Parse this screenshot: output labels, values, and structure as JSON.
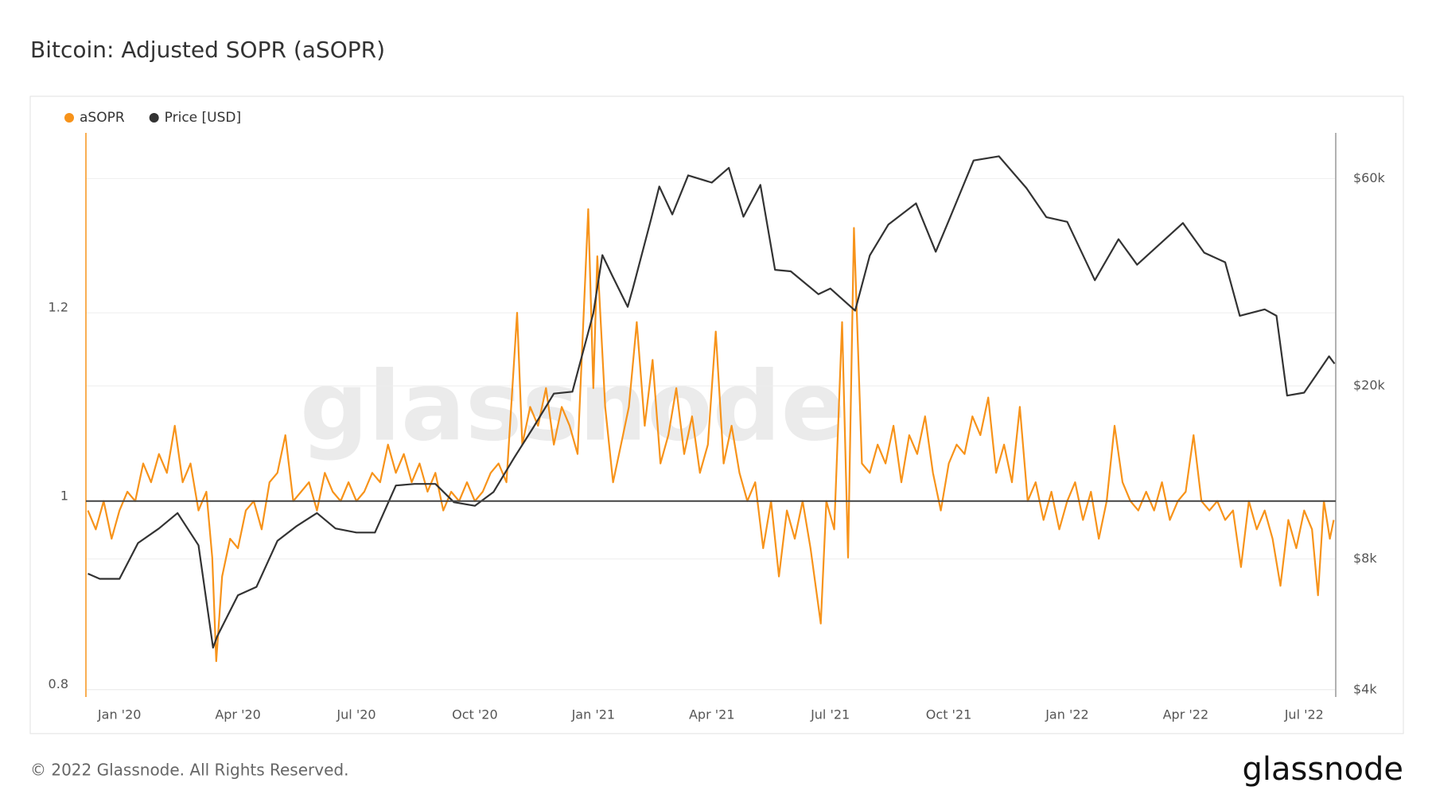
{
  "chart_data": {
    "type": "line",
    "title": "Bitcoin: Adjusted SOPR (aSOPR)",
    "footer": "© 2022 Glassnode. All Rights Reserved.",
    "brand": "glassnode",
    "xlim": [
      -0.85,
      30.8
    ],
    "xticks": [
      {
        "value": 0,
        "label": "Jan '20"
      },
      {
        "value": 3,
        "label": "Apr '20"
      },
      {
        "value": 6,
        "label": "Jul '20"
      },
      {
        "value": 9,
        "label": "Oct '20"
      },
      {
        "value": 12,
        "label": "Jan '21"
      },
      {
        "value": 15,
        "label": "Apr '21"
      },
      {
        "value": 18,
        "label": "Jul '21"
      },
      {
        "value": 21,
        "label": "Oct '21"
      },
      {
        "value": 24,
        "label": "Jan '22"
      },
      {
        "value": 27,
        "label": "Apr '22"
      },
      {
        "value": 30,
        "label": "Jul '22"
      }
    ],
    "ylim": [
      0.792,
      1.391
    ],
    "yticks": [
      0.8,
      1,
      1.2
    ],
    "y2lim": [
      3850,
      76400
    ],
    "y2ticks": [
      {
        "value": 4000,
        "label": "$4k"
      },
      {
        "value": 8000,
        "label": "$8k"
      },
      {
        "value": 20000,
        "label": "$20k"
      },
      {
        "value": 60000,
        "label": "$60k"
      }
    ],
    "y2log": true,
    "hline": 1,
    "grid": true,
    "legend": "top-left",
    "series": [
      {
        "name": "aSOPR",
        "color": "#f7931a",
        "axis": "y",
        "x": [
          -0.8,
          -0.6,
          -0.4,
          -0.2,
          0,
          0.2,
          0.4,
          0.6,
          0.8,
          1.0,
          1.2,
          1.4,
          1.6,
          1.8,
          2.0,
          2.2,
          2.35,
          2.45,
          2.6,
          2.8,
          3.0,
          3.2,
          3.4,
          3.6,
          3.8,
          4.0,
          4.2,
          4.4,
          4.6,
          4.8,
          5.0,
          5.2,
          5.4,
          5.6,
          5.8,
          6.0,
          6.2,
          6.4,
          6.6,
          6.8,
          7.0,
          7.2,
          7.4,
          7.6,
          7.8,
          8.0,
          8.2,
          8.4,
          8.6,
          8.8,
          9.0,
          9.2,
          9.4,
          9.6,
          9.8,
          10.07,
          10.2,
          10.4,
          10.6,
          10.8,
          11.0,
          11.2,
          11.4,
          11.6,
          11.87,
          12.0,
          12.1,
          12.3,
          12.5,
          12.7,
          12.9,
          13.1,
          13.3,
          13.5,
          13.7,
          13.9,
          14.1,
          14.3,
          14.5,
          14.7,
          14.9,
          15.1,
          15.3,
          15.5,
          15.7,
          15.9,
          16.1,
          16.3,
          16.5,
          16.7,
          16.9,
          17.1,
          17.3,
          17.5,
          17.76,
          17.9,
          18.1,
          18.3,
          18.45,
          18.6,
          18.8,
          19.0,
          19.2,
          19.4,
          19.6,
          19.8,
          20.0,
          20.2,
          20.4,
          20.6,
          20.8,
          21.0,
          21.2,
          21.4,
          21.6,
          21.8,
          22.0,
          22.2,
          22.4,
          22.6,
          22.8,
          23.0,
          23.2,
          23.4,
          23.6,
          23.8,
          24.0,
          24.2,
          24.4,
          24.6,
          24.8,
          25.0,
          25.2,
          25.4,
          25.6,
          25.8,
          26.0,
          26.2,
          26.4,
          26.6,
          26.8,
          27.0,
          27.2,
          27.4,
          27.6,
          27.8,
          28.0,
          28.2,
          28.4,
          28.6,
          28.8,
          29.0,
          29.2,
          29.4,
          29.6,
          29.8,
          30.0,
          30.2,
          30.35,
          30.5,
          30.65,
          30.75
        ],
        "values": [
          0.99,
          0.97,
          1.0,
          0.96,
          0.99,
          1.01,
          1.0,
          1.04,
          1.02,
          1.05,
          1.03,
          1.08,
          1.02,
          1.04,
          0.99,
          1.01,
          0.94,
          0.83,
          0.92,
          0.96,
          0.95,
          0.99,
          1.0,
          0.97,
          1.02,
          1.03,
          1.07,
          1.0,
          1.01,
          1.02,
          0.99,
          1.03,
          1.01,
          1.0,
          1.02,
          1.0,
          1.01,
          1.03,
          1.02,
          1.06,
          1.03,
          1.05,
          1.02,
          1.04,
          1.01,
          1.03,
          0.99,
          1.01,
          1.0,
          1.02,
          1.0,
          1.01,
          1.03,
          1.04,
          1.02,
          1.2,
          1.06,
          1.1,
          1.08,
          1.12,
          1.06,
          1.1,
          1.08,
          1.05,
          1.31,
          1.12,
          1.26,
          1.1,
          1.02,
          1.06,
          1.1,
          1.19,
          1.08,
          1.15,
          1.04,
          1.07,
          1.12,
          1.05,
          1.09,
          1.03,
          1.06,
          1.18,
          1.04,
          1.08,
          1.03,
          1.0,
          1.02,
          0.95,
          1.0,
          0.92,
          0.99,
          0.96,
          1.0,
          0.95,
          0.87,
          1.0,
          0.97,
          1.19,
          0.94,
          1.29,
          1.04,
          1.03,
          1.06,
          1.04,
          1.08,
          1.02,
          1.07,
          1.05,
          1.09,
          1.03,
          0.99,
          1.04,
          1.06,
          1.05,
          1.09,
          1.07,
          1.11,
          1.03,
          1.06,
          1.02,
          1.1,
          1.0,
          1.02,
          0.98,
          1.01,
          0.97,
          1.0,
          1.02,
          0.98,
          1.01,
          0.96,
          1.0,
          1.08,
          1.02,
          1.0,
          0.99,
          1.01,
          0.99,
          1.02,
          0.98,
          1.0,
          1.01,
          1.07,
          1.0,
          0.99,
          1.0,
          0.98,
          0.99,
          0.93,
          1.0,
          0.97,
          0.99,
          0.96,
          0.91,
          0.98,
          0.95,
          0.99,
          0.97,
          0.9,
          1.0,
          0.96,
          0.98
        ]
      },
      {
        "name": "Price [USD]",
        "color": "#333333",
        "axis": "y2",
        "x": [
          -0.8,
          -0.5,
          0,
          0.47,
          1,
          1.47,
          2,
          2.37,
          2.47,
          3,
          3.47,
          4,
          4.47,
          5,
          5.47,
          6,
          6.47,
          7,
          7.47,
          8,
          8.47,
          9,
          9.47,
          10,
          10.47,
          11,
          11.47,
          12,
          12.23,
          12.47,
          12.87,
          13,
          13.47,
          13.67,
          14,
          14.4,
          15,
          15.43,
          15.8,
          16.23,
          16.6,
          17,
          17.7,
          18,
          18.63,
          19,
          19.47,
          20.17,
          20.67,
          21,
          21.63,
          22.27,
          22.97,
          23.47,
          24,
          24.7,
          25.3,
          25.77,
          26.93,
          27.47,
          28,
          28.37,
          29,
          29.3,
          29.57,
          30,
          30.63,
          30.77
        ],
        "values": [
          7400,
          7200,
          7200,
          8700,
          9400,
          10200,
          8600,
          5000,
          5300,
          6600,
          6900,
          8800,
          9500,
          10200,
          9400,
          9200,
          9200,
          11800,
          11900,
          11900,
          10800,
          10600,
          11400,
          13700,
          16000,
          19200,
          19400,
          29400,
          40000,
          36000,
          30400,
          33500,
          48700,
          57500,
          49600,
          61000,
          58700,
          63500,
          49000,
          58000,
          37000,
          36700,
          32500,
          33500,
          29800,
          39900,
          47000,
          52600,
          40700,
          48000,
          66000,
          67500,
          57000,
          48900,
          47700,
          35000,
          43500,
          38000,
          47400,
          40500,
          38500,
          29000,
          30000,
          29000,
          19000,
          19300,
          23400,
          22500
        ]
      }
    ]
  }
}
